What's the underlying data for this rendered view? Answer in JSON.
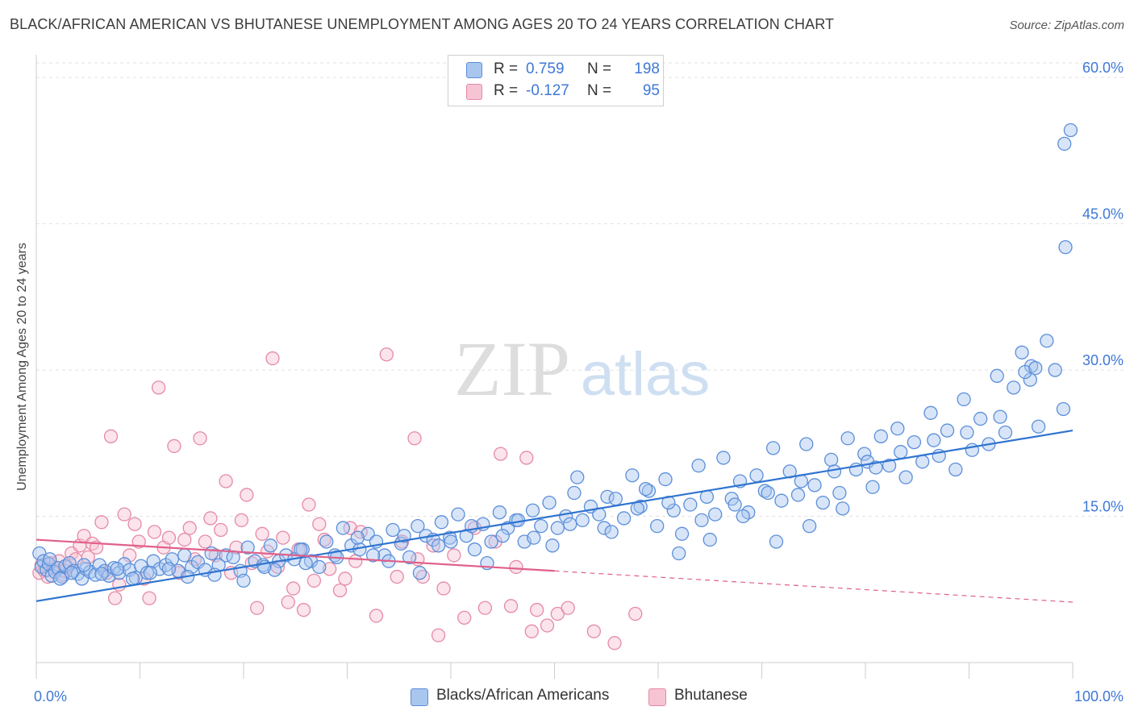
{
  "title": "BLACK/AFRICAN AMERICAN VS BHUTANESE UNEMPLOYMENT AMONG AGES 20 TO 24 YEARS CORRELATION CHART",
  "source": "Source: ZipAtlas.com",
  "watermark": {
    "zip": "ZIP",
    "atlas": "atlas"
  },
  "legend": {
    "rows": [
      {
        "r_label": "R =",
        "r_value": "0.759",
        "n_label": "N =",
        "n_value": "198",
        "color": "#a9c6ef",
        "border": "#5b8fd9"
      },
      {
        "r_label": "R =",
        "r_value": "-0.127",
        "n_label": "N =",
        "n_value": "95",
        "color": "#f7c4d3",
        "border": "#e58aa6"
      }
    ]
  },
  "bottom_legend": {
    "series_a": "Blacks/African Americans",
    "series_b": "Bhutanese"
  },
  "colors": {
    "blue_fill": "#a9c6ef",
    "blue_stroke": "#5b8fd9",
    "blue_line": "#2f74d0",
    "pink_fill": "#f7c4d3",
    "pink_stroke": "#e58aa6",
    "pink_line": "#e0608a",
    "tick_label": "#3f78d6",
    "grid": "#e2e2e2"
  },
  "chart_data": {
    "type": "scatter",
    "title": "BLACK/AFRICAN AMERICAN VS BHUTANESE UNEMPLOYMENT AMONG AGES 20 TO 24 YEARS CORRELATION CHART",
    "xlabel": "",
    "ylabel": "Unemployment Among Ages 20 to 24 years",
    "xlim": [
      0,
      100
    ],
    "ylim": [
      0,
      61.5
    ],
    "x_tick_labels": [
      "0.0%",
      "100.0%"
    ],
    "y_ticks": [
      15,
      30,
      45,
      60
    ],
    "y_tick_labels": [
      "15.0%",
      "30.0%",
      "45.0%",
      "60.0%"
    ],
    "grid": true,
    "series": [
      {
        "name": "Blacks/African Americans",
        "trend": {
          "x": [
            0,
            100
          ],
          "y": [
            6.3,
            23.8
          ]
        },
        "points": [
          [
            0.3,
            11.2
          ],
          [
            0.5,
            9.8
          ],
          [
            0.7,
            10.4
          ],
          [
            1.0,
            9.5
          ],
          [
            1.2,
            10.1
          ],
          [
            1.5,
            8.9
          ],
          [
            1.8,
            9.3
          ],
          [
            2.1,
            9.7
          ],
          [
            2.5,
            8.8
          ],
          [
            2.8,
            9.9
          ],
          [
            3.2,
            10.2
          ],
          [
            3.6,
            9.4
          ],
          [
            4.0,
            9.1
          ],
          [
            4.4,
            8.6
          ],
          [
            4.8,
            9.6
          ],
          [
            5.2,
            9.3
          ],
          [
            5.7,
            9.0
          ],
          [
            6.1,
            10.0
          ],
          [
            6.6,
            9.4
          ],
          [
            7.0,
            8.9
          ],
          [
            7.5,
            9.7
          ],
          [
            8.0,
            9.2
          ],
          [
            8.5,
            10.1
          ],
          [
            9.0,
            9.5
          ],
          [
            9.6,
            8.7
          ],
          [
            10.1,
            9.9
          ],
          [
            10.7,
            9.2
          ],
          [
            11.3,
            10.4
          ],
          [
            11.9,
            9.6
          ],
          [
            12.5,
            10.0
          ],
          [
            13.1,
            10.6
          ],
          [
            13.7,
            9.4
          ],
          [
            14.3,
            11.0
          ],
          [
            15.0,
            9.8
          ],
          [
            15.6,
            10.3
          ],
          [
            16.3,
            9.5
          ],
          [
            16.9,
            11.2
          ],
          [
            17.6,
            10.0
          ],
          [
            18.3,
            11.0
          ],
          [
            19.0,
            10.8
          ],
          [
            19.7,
            9.4
          ],
          [
            20.4,
            11.8
          ],
          [
            21.1,
            10.4
          ],
          [
            21.9,
            10.0
          ],
          [
            22.6,
            12.0
          ],
          [
            23.4,
            10.4
          ],
          [
            24.1,
            11.0
          ],
          [
            24.9,
            10.6
          ],
          [
            25.7,
            11.6
          ],
          [
            26.5,
            10.4
          ],
          [
            27.3,
            9.8
          ],
          [
            28.0,
            12.4
          ],
          [
            28.8,
            11.0
          ],
          [
            29.6,
            13.8
          ],
          [
            30.4,
            12.0
          ],
          [
            31.2,
            11.6
          ],
          [
            32.0,
            13.2
          ],
          [
            32.8,
            12.4
          ],
          [
            33.6,
            11.0
          ],
          [
            34.4,
            13.6
          ],
          [
            35.2,
            12.2
          ],
          [
            36.0,
            10.8
          ],
          [
            36.8,
            14.0
          ],
          [
            37.6,
            13.0
          ],
          [
            38.3,
            12.6
          ],
          [
            39.1,
            14.4
          ],
          [
            39.9,
            12.8
          ],
          [
            40.7,
            15.2
          ],
          [
            41.5,
            13.0
          ],
          [
            42.3,
            11.6
          ],
          [
            43.1,
            14.2
          ],
          [
            43.9,
            12.4
          ],
          [
            44.7,
            15.4
          ],
          [
            45.5,
            13.8
          ],
          [
            46.3,
            14.6
          ],
          [
            47.1,
            12.4
          ],
          [
            47.9,
            15.6
          ],
          [
            48.7,
            14.0
          ],
          [
            49.5,
            16.4
          ],
          [
            50.3,
            13.8
          ],
          [
            51.1,
            15.0
          ],
          [
            51.9,
            17.4
          ],
          [
            52.7,
            14.6
          ],
          [
            53.5,
            16.0
          ],
          [
            54.3,
            15.2
          ],
          [
            55.1,
            17.0
          ],
          [
            55.9,
            16.8
          ],
          [
            56.7,
            14.8
          ],
          [
            57.5,
            19.2
          ],
          [
            58.3,
            16.0
          ],
          [
            59.1,
            17.6
          ],
          [
            59.9,
            14.0
          ],
          [
            60.7,
            18.8
          ],
          [
            61.5,
            15.6
          ],
          [
            62.3,
            13.2
          ],
          [
            63.1,
            16.2
          ],
          [
            63.9,
            20.2
          ],
          [
            64.7,
            17.0
          ],
          [
            65.5,
            15.2
          ],
          [
            66.3,
            21.0
          ],
          [
            67.1,
            16.8
          ],
          [
            67.9,
            18.6
          ],
          [
            68.7,
            15.4
          ],
          [
            69.5,
            19.2
          ],
          [
            70.3,
            17.6
          ],
          [
            71.1,
            22.0
          ],
          [
            71.9,
            16.6
          ],
          [
            72.7,
            19.6
          ],
          [
            73.5,
            17.2
          ],
          [
            74.3,
            22.4
          ],
          [
            75.1,
            18.2
          ],
          [
            75.9,
            16.4
          ],
          [
            76.7,
            20.8
          ],
          [
            77.5,
            17.4
          ],
          [
            78.3,
            23.0
          ],
          [
            79.1,
            19.8
          ],
          [
            79.9,
            21.4
          ],
          [
            80.7,
            18.0
          ],
          [
            81.5,
            23.2
          ],
          [
            82.3,
            20.2
          ],
          [
            83.1,
            24.0
          ],
          [
            83.9,
            19.0
          ],
          [
            84.7,
            22.6
          ],
          [
            85.5,
            20.6
          ],
          [
            86.3,
            25.6
          ],
          [
            87.1,
            21.2
          ],
          [
            87.9,
            23.8
          ],
          [
            88.7,
            19.8
          ],
          [
            89.5,
            27.0
          ],
          [
            90.3,
            21.8
          ],
          [
            91.1,
            25.0
          ],
          [
            91.9,
            22.4
          ],
          [
            92.7,
            29.4
          ],
          [
            93.5,
            23.6
          ],
          [
            94.3,
            28.2
          ],
          [
            95.1,
            31.8
          ],
          [
            95.9,
            29.0
          ],
          [
            96.7,
            24.2
          ],
          [
            97.5,
            33.0
          ],
          [
            98.3,
            30.0
          ],
          [
            99.1,
            26.0
          ],
          [
            99.2,
            53.2
          ],
          [
            99.8,
            54.6
          ],
          [
            99.3,
            42.6
          ],
          [
            96.0,
            30.4
          ],
          [
            95.4,
            29.8
          ],
          [
            96.4,
            30.2
          ],
          [
            1.3,
            10.6
          ],
          [
            2.3,
            8.6
          ],
          [
            3.4,
            9.2
          ],
          [
            4.6,
            10.0
          ],
          [
            6.3,
            9.1
          ],
          [
            7.8,
            9.6
          ],
          [
            9.3,
            8.6
          ],
          [
            11.0,
            9.2
          ],
          [
            12.8,
            9.6
          ],
          [
            14.6,
            8.8
          ],
          [
            17.2,
            9.0
          ],
          [
            20.0,
            8.4
          ],
          [
            23.0,
            9.5
          ],
          [
            26.0,
            10.2
          ],
          [
            29.0,
            10.8
          ],
          [
            32.5,
            11.0
          ],
          [
            35.5,
            13.0
          ],
          [
            38.8,
            12.0
          ],
          [
            42.0,
            14.0
          ],
          [
            45.0,
            13.0
          ],
          [
            48.0,
            12.8
          ],
          [
            51.5,
            14.2
          ],
          [
            54.8,
            13.8
          ],
          [
            58.0,
            15.8
          ],
          [
            61.0,
            16.4
          ],
          [
            64.2,
            14.6
          ],
          [
            67.4,
            16.2
          ],
          [
            70.6,
            17.4
          ],
          [
            73.8,
            18.6
          ],
          [
            77.0,
            19.6
          ],
          [
            80.2,
            20.6
          ],
          [
            83.4,
            21.6
          ],
          [
            86.6,
            22.8
          ],
          [
            89.8,
            23.6
          ],
          [
            93.0,
            25.2
          ],
          [
            22.0,
            9.8
          ],
          [
            25.5,
            11.6
          ],
          [
            31.0,
            12.8
          ],
          [
            34.0,
            10.4
          ],
          [
            37.0,
            9.2
          ],
          [
            40.0,
            12.4
          ],
          [
            43.5,
            10.2
          ],
          [
            46.5,
            14.6
          ],
          [
            49.8,
            12.0
          ],
          [
            52.2,
            19.0
          ],
          [
            55.5,
            13.4
          ],
          [
            58.8,
            17.8
          ],
          [
            62.0,
            11.2
          ],
          [
            65.0,
            12.6
          ],
          [
            68.2,
            15.0
          ],
          [
            71.4,
            12.4
          ],
          [
            74.6,
            14.0
          ],
          [
            77.8,
            15.8
          ],
          [
            81.0,
            20.0
          ]
        ]
      },
      {
        "name": "Bhutanese",
        "trend": {
          "x": [
            0,
            50
          ],
          "y": [
            12.6,
            9.4
          ]
        },
        "trend_dashed": {
          "x": [
            50,
            100
          ],
          "y": [
            9.4,
            6.2
          ]
        },
        "points": [
          [
            0.3,
            9.2
          ],
          [
            0.5,
            10.0
          ],
          [
            0.8,
            9.4
          ],
          [
            1.1,
            8.8
          ],
          [
            1.4,
            10.2
          ],
          [
            1.8,
            9.6
          ],
          [
            2.2,
            10.4
          ],
          [
            2.6,
            9.0
          ],
          [
            3.0,
            9.8
          ],
          [
            3.4,
            11.2
          ],
          [
            3.8,
            10.6
          ],
          [
            4.2,
            12.0
          ],
          [
            4.6,
            13.0
          ],
          [
            5.0,
            10.8
          ],
          [
            5.4,
            12.2
          ],
          [
            5.8,
            11.8
          ],
          [
            6.3,
            14.4
          ],
          [
            6.8,
            9.2
          ],
          [
            7.2,
            23.2
          ],
          [
            7.6,
            6.6
          ],
          [
            8.0,
            8.0
          ],
          [
            8.5,
            15.2
          ],
          [
            9.0,
            11.0
          ],
          [
            9.5,
            14.2
          ],
          [
            9.9,
            12.4
          ],
          [
            10.4,
            8.6
          ],
          [
            10.9,
            6.6
          ],
          [
            11.4,
            13.4
          ],
          [
            11.8,
            28.2
          ],
          [
            12.3,
            11.8
          ],
          [
            12.8,
            12.8
          ],
          [
            13.3,
            22.2
          ],
          [
            13.8,
            9.2
          ],
          [
            14.3,
            12.6
          ],
          [
            14.8,
            13.8
          ],
          [
            15.3,
            10.6
          ],
          [
            15.8,
            23.0
          ],
          [
            16.3,
            12.4
          ],
          [
            16.8,
            14.8
          ],
          [
            17.3,
            11.0
          ],
          [
            17.8,
            13.6
          ],
          [
            18.3,
            18.6
          ],
          [
            18.8,
            9.2
          ],
          [
            19.3,
            11.8
          ],
          [
            19.8,
            14.6
          ],
          [
            20.3,
            17.2
          ],
          [
            20.8,
            10.2
          ],
          [
            21.3,
            5.6
          ],
          [
            21.8,
            13.2
          ],
          [
            22.3,
            11.4
          ],
          [
            22.8,
            31.2
          ],
          [
            23.3,
            9.8
          ],
          [
            23.8,
            12.8
          ],
          [
            24.3,
            6.2
          ],
          [
            24.8,
            7.6
          ],
          [
            25.3,
            11.6
          ],
          [
            25.8,
            5.4
          ],
          [
            26.3,
            16.2
          ],
          [
            26.8,
            8.4
          ],
          [
            27.3,
            14.2
          ],
          [
            27.8,
            12.6
          ],
          [
            28.3,
            9.6
          ],
          [
            29.3,
            7.4
          ],
          [
            29.8,
            8.6
          ],
          [
            30.3,
            13.8
          ],
          [
            30.8,
            10.4
          ],
          [
            31.3,
            13.4
          ],
          [
            32.8,
            4.8
          ],
          [
            34.8,
            8.8
          ],
          [
            35.3,
            12.4
          ],
          [
            36.8,
            10.6
          ],
          [
            37.3,
            8.8
          ],
          [
            38.3,
            12.0
          ],
          [
            38.8,
            2.8
          ],
          [
            40.3,
            11.0
          ],
          [
            41.3,
            4.6
          ],
          [
            42.3,
            13.8
          ],
          [
            43.3,
            5.6
          ],
          [
            44.3,
            12.4
          ],
          [
            44.8,
            21.4
          ],
          [
            45.8,
            5.8
          ],
          [
            46.3,
            9.8
          ],
          [
            47.3,
            21.0
          ],
          [
            47.8,
            3.2
          ],
          [
            48.3,
            5.4
          ],
          [
            49.3,
            3.8
          ],
          [
            50.3,
            5.0
          ],
          [
            51.3,
            5.6
          ],
          [
            53.8,
            3.2
          ],
          [
            55.8,
            2.0
          ],
          [
            57.8,
            5.0
          ],
          [
            36.5,
            23.0
          ],
          [
            33.8,
            31.6
          ],
          [
            39.3,
            7.6
          ],
          [
            2.7,
            9.4
          ]
        ]
      }
    ]
  }
}
